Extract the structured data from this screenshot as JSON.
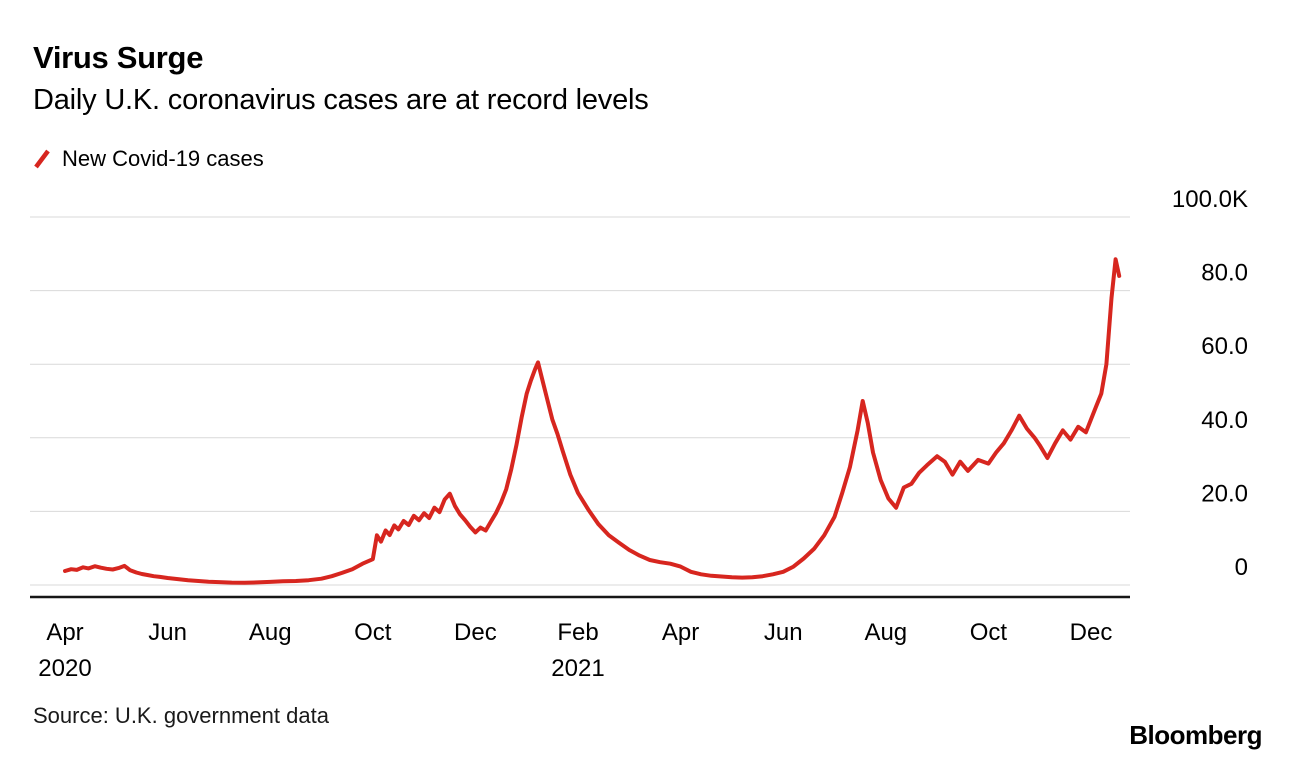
{
  "header": {
    "title": "Virus Surge",
    "subtitle": "Daily U.K. coronavirus cases are at record levels"
  },
  "legend": {
    "label": "New Covid-19 cases"
  },
  "footer": {
    "source": "Source: U.K. government data",
    "logo": "Bloomberg"
  },
  "chart_data": {
    "type": "line",
    "title": "Virus Surge",
    "subtitle": "Daily U.K. coronavirus cases are at record levels",
    "series_name": "New Covid-19 cases",
    "x_unit": "months since 2020-04-01",
    "y_unit": "thousands of daily cases",
    "xlim": [
      0,
      20.8
    ],
    "ylim": [
      0,
      100
    ],
    "y_axis_side": "right",
    "grid": true,
    "line_color": "#d7261f",
    "grid_color": "#d9d9d9",
    "axis_color": "#161616",
    "y_ticks": [
      {
        "value": 0,
        "label": "0"
      },
      {
        "value": 20,
        "label": "20.0"
      },
      {
        "value": 40,
        "label": "40.0"
      },
      {
        "value": 60,
        "label": "60.0"
      },
      {
        "value": 80,
        "label": "80.0"
      },
      {
        "value": 100,
        "label": "100.0K"
      }
    ],
    "x_ticks": [
      {
        "m": 0,
        "label": "Apr",
        "year": "2020"
      },
      {
        "m": 2,
        "label": "Jun"
      },
      {
        "m": 4,
        "label": "Aug"
      },
      {
        "m": 6,
        "label": "Oct"
      },
      {
        "m": 8,
        "label": "Dec"
      },
      {
        "m": 10,
        "label": "Feb",
        "year": "2021"
      },
      {
        "m": 12,
        "label": "Apr"
      },
      {
        "m": 14,
        "label": "Jun"
      },
      {
        "m": 16,
        "label": "Aug"
      },
      {
        "m": 18,
        "label": "Oct"
      },
      {
        "m": 20,
        "label": "Dec"
      }
    ],
    "points": [
      [
        0.0,
        3.8
      ],
      [
        0.12,
        4.3
      ],
      [
        0.23,
        4.1
      ],
      [
        0.35,
        4.8
      ],
      [
        0.46,
        4.5
      ],
      [
        0.58,
        5.1
      ],
      [
        0.7,
        4.7
      ],
      [
        0.81,
        4.4
      ],
      [
        0.93,
        4.2
      ],
      [
        1.04,
        4.6
      ],
      [
        1.16,
        5.2
      ],
      [
        1.27,
        4.0
      ],
      [
        1.39,
        3.4
      ],
      [
        1.5,
        3.0
      ],
      [
        1.62,
        2.7
      ],
      [
        1.73,
        2.4
      ],
      [
        1.85,
        2.2
      ],
      [
        2.0,
        1.9
      ],
      [
        2.2,
        1.6
      ],
      [
        2.4,
        1.3
      ],
      [
        2.6,
        1.1
      ],
      [
        2.8,
        0.9
      ],
      [
        3.0,
        0.8
      ],
      [
        3.25,
        0.65
      ],
      [
        3.5,
        0.6
      ],
      [
        3.75,
        0.7
      ],
      [
        4.0,
        0.85
      ],
      [
        4.25,
        1.0
      ],
      [
        4.5,
        1.1
      ],
      [
        4.75,
        1.3
      ],
      [
        5.0,
        1.7
      ],
      [
        5.2,
        2.4
      ],
      [
        5.4,
        3.3
      ],
      [
        5.6,
        4.3
      ],
      [
        5.8,
        5.8
      ],
      [
        6.0,
        7.0
      ],
      [
        6.08,
        13.5
      ],
      [
        6.16,
        11.8
      ],
      [
        6.25,
        14.8
      ],
      [
        6.33,
        13.6
      ],
      [
        6.42,
        16.2
      ],
      [
        6.5,
        15.1
      ],
      [
        6.6,
        17.4
      ],
      [
        6.7,
        16.3
      ],
      [
        6.8,
        18.8
      ],
      [
        6.9,
        17.6
      ],
      [
        7.0,
        19.5
      ],
      [
        7.1,
        18.2
      ],
      [
        7.2,
        21.0
      ],
      [
        7.3,
        19.8
      ],
      [
        7.4,
        23.2
      ],
      [
        7.5,
        24.8
      ],
      [
        7.6,
        21.5
      ],
      [
        7.7,
        19.2
      ],
      [
        7.8,
        17.6
      ],
      [
        7.9,
        15.8
      ],
      [
        8.0,
        14.3
      ],
      [
        8.1,
        15.6
      ],
      [
        8.2,
        14.8
      ],
      [
        8.3,
        17.2
      ],
      [
        8.4,
        19.5
      ],
      [
        8.5,
        22.4
      ],
      [
        8.6,
        26.0
      ],
      [
        8.7,
        31.5
      ],
      [
        8.8,
        38.0
      ],
      [
        8.9,
        45.5
      ],
      [
        9.0,
        52.0
      ],
      [
        9.08,
        55.5
      ],
      [
        9.16,
        58.5
      ],
      [
        9.22,
        60.5
      ],
      [
        9.3,
        56.0
      ],
      [
        9.4,
        50.5
      ],
      [
        9.5,
        45.0
      ],
      [
        9.6,
        41.0
      ],
      [
        9.7,
        36.5
      ],
      [
        9.85,
        30.0
      ],
      [
        10.0,
        25.0
      ],
      [
        10.2,
        20.5
      ],
      [
        10.4,
        16.5
      ],
      [
        10.6,
        13.5
      ],
      [
        10.8,
        11.5
      ],
      [
        11.0,
        9.5
      ],
      [
        11.2,
        8.0
      ],
      [
        11.4,
        6.8
      ],
      [
        11.6,
        6.2
      ],
      [
        11.8,
        5.8
      ],
      [
        12.0,
        5.0
      ],
      [
        12.2,
        3.6
      ],
      [
        12.4,
        2.9
      ],
      [
        12.6,
        2.5
      ],
      [
        12.8,
        2.3
      ],
      [
        13.0,
        2.1
      ],
      [
        13.2,
        2.0
      ],
      [
        13.4,
        2.1
      ],
      [
        13.6,
        2.4
      ],
      [
        13.8,
        2.9
      ],
      [
        14.0,
        3.6
      ],
      [
        14.2,
        5.0
      ],
      [
        14.4,
        7.2
      ],
      [
        14.6,
        9.8
      ],
      [
        14.8,
        13.5
      ],
      [
        15.0,
        18.5
      ],
      [
        15.15,
        25.0
      ],
      [
        15.3,
        32.0
      ],
      [
        15.45,
        42.0
      ],
      [
        15.55,
        50.0
      ],
      [
        15.65,
        44.0
      ],
      [
        15.75,
        36.0
      ],
      [
        15.9,
        28.5
      ],
      [
        16.05,
        23.5
      ],
      [
        16.2,
        21.0
      ],
      [
        16.35,
        26.5
      ],
      [
        16.5,
        27.5
      ],
      [
        16.65,
        30.5
      ],
      [
        16.8,
        32.5
      ],
      [
        17.0,
        35.0
      ],
      [
        17.15,
        33.5
      ],
      [
        17.3,
        30.0
      ],
      [
        17.45,
        33.5
      ],
      [
        17.6,
        31.0
      ],
      [
        17.8,
        34.0
      ],
      [
        18.0,
        33.0
      ],
      [
        18.15,
        36.0
      ],
      [
        18.3,
        38.5
      ],
      [
        18.45,
        42.0
      ],
      [
        18.6,
        46.0
      ],
      [
        18.75,
        42.5
      ],
      [
        18.9,
        40.0
      ],
      [
        19.0,
        38.0
      ],
      [
        19.15,
        34.5
      ],
      [
        19.3,
        38.5
      ],
      [
        19.45,
        42.0
      ],
      [
        19.6,
        39.5
      ],
      [
        19.75,
        43.0
      ],
      [
        19.9,
        41.5
      ],
      [
        20.0,
        45.0
      ],
      [
        20.1,
        48.5
      ],
      [
        20.2,
        52.0
      ],
      [
        20.3,
        60.0
      ],
      [
        20.4,
        78.0
      ],
      [
        20.48,
        88.5
      ],
      [
        20.55,
        84.0
      ]
    ]
  }
}
